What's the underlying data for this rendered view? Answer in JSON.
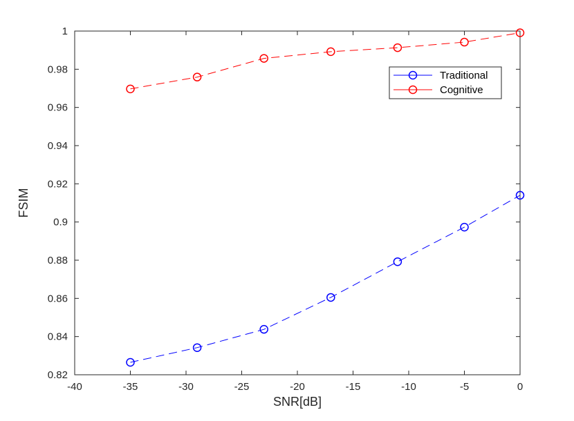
{
  "chart_data": {
    "type": "line",
    "title": "",
    "xlabel": "SNR[dB]",
    "ylabel": "FSIM",
    "xlim": [
      -40,
      0
    ],
    "ylim": [
      0.82,
      1.0
    ],
    "xticks": [
      -40,
      -35,
      -30,
      -25,
      -20,
      -15,
      -10,
      -5,
      0
    ],
    "yticks": [
      0.82,
      0.84,
      0.86,
      0.88,
      0.9,
      0.92,
      0.94,
      0.96,
      0.98,
      1
    ],
    "xtick_labels": [
      "-40",
      "-35",
      "-30",
      "-25",
      "-20",
      "-15",
      "-10",
      "-5",
      "0"
    ],
    "ytick_labels": [
      "0.82",
      "0.84",
      "0.86",
      "0.88",
      "0.9",
      "0.92",
      "0.94",
      "0.96",
      "0.98",
      "1"
    ],
    "grid": false,
    "legend_position": "top-right",
    "series": [
      {
        "name": "Traditional",
        "color": "#0000ff",
        "line_style": "dashed",
        "marker": "circle",
        "x": [
          -35,
          -29,
          -23,
          -17,
          -11,
          -5,
          0
        ],
        "y": [
          0.8265,
          0.8342,
          0.8438,
          0.8605,
          0.8792,
          0.8973,
          0.914
        ]
      },
      {
        "name": "Cognitive",
        "color": "#ff0000",
        "line_style": "dashed",
        "marker": "circle",
        "x": [
          -35,
          -29,
          -23,
          -17,
          -11,
          -5,
          0
        ],
        "y": [
          0.9697,
          0.9759,
          0.9857,
          0.9892,
          0.9913,
          0.9942,
          0.9991
        ]
      }
    ]
  }
}
